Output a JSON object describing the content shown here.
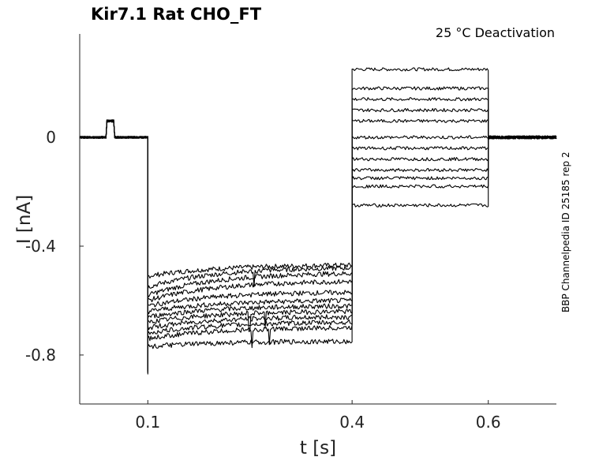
{
  "chart_data": {
    "type": "line",
    "title": "Kir7.1  Rat  CHO_FT",
    "annotation": "25 °C  Deactivation",
    "side_note": "BBP Channelpedia ID 25185 rep 2",
    "xlabel": "t [s]",
    "ylabel": "I [nA]",
    "xlim": [
      0.0,
      0.7
    ],
    "ylim": [
      -0.98,
      0.38
    ],
    "xticks": [
      0.1,
      0.4,
      0.6
    ],
    "xtick_labels": [
      "0.1",
      "0.4",
      "0.6"
    ],
    "yticks": [
      0,
      -0.4,
      -0.8
    ],
    "ytick_labels": [
      "0",
      "-0.4",
      "-0.8"
    ],
    "grid": false,
    "protocol_times": {
      "capacitive_blip": [
        0.04,
        0.05
      ],
      "step_start": 0.1,
      "step_end": 0.4,
      "tail_end": 0.6
    },
    "sweeps": [
      {
        "step_start": -0.51,
        "step_end": -0.47,
        "tail": 0.25
      },
      {
        "step_start": -0.55,
        "step_end": -0.48,
        "tail": 0.18
      },
      {
        "step_start": -0.58,
        "step_end": -0.5,
        "tail": 0.14
      },
      {
        "step_start": -0.6,
        "step_end": -0.53,
        "tail": 0.1
      },
      {
        "step_start": -0.62,
        "step_end": -0.57,
        "tail": 0.06
      },
      {
        "step_start": -0.64,
        "step_end": -0.6,
        "tail": 0.0
      },
      {
        "step_start": -0.66,
        "step_end": -0.62,
        "tail": -0.04
      },
      {
        "step_start": -0.68,
        "step_end": -0.64,
        "tail": -0.08
      },
      {
        "step_start": -0.7,
        "step_end": -0.66,
        "tail": -0.12
      },
      {
        "step_start": -0.72,
        "step_end": -0.68,
        "tail": -0.15
      },
      {
        "step_start": -0.74,
        "step_end": -0.7,
        "tail": -0.18
      },
      {
        "step_start": -0.77,
        "step_end": -0.75,
        "tail": -0.25
      }
    ],
    "baseline": 0.0,
    "peak_transient": -0.87
  }
}
